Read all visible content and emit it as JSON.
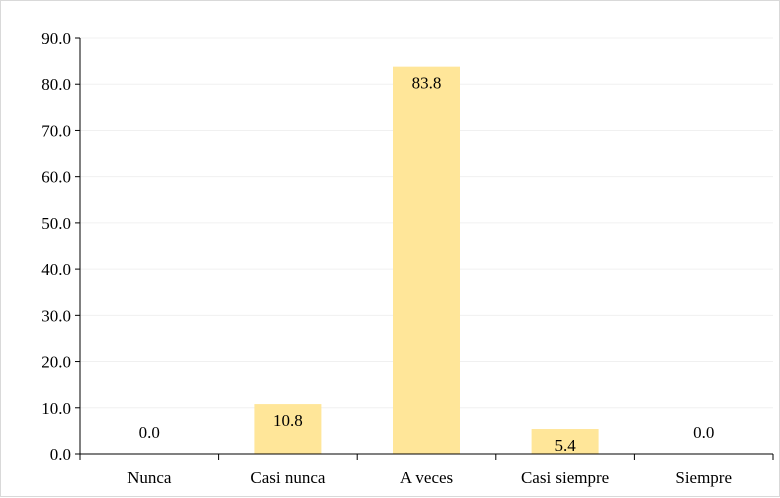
{
  "chart_data": {
    "type": "bar",
    "categories": [
      "Nunca",
      "Casi nunca",
      "A veces",
      "Casi siempre",
      "Siempre"
    ],
    "values": [
      0.0,
      10.8,
      83.8,
      5.4,
      0.0
    ],
    "value_labels": [
      "0.0",
      "10.8",
      "83.8",
      "5.4",
      "0.0"
    ],
    "y_ticks": [
      "0.0",
      "10.0",
      "20.0",
      "30.0",
      "40.0",
      "50.0",
      "60.0",
      "70.0",
      "80.0",
      "90.0"
    ],
    "ylim": [
      0,
      90
    ],
    "title": "",
    "xlabel": "",
    "ylabel": "",
    "grid": true,
    "legend": "none",
    "bar_color": "#ffe699",
    "grid_color": "#f0f0f0",
    "axis_color": "#000000"
  }
}
